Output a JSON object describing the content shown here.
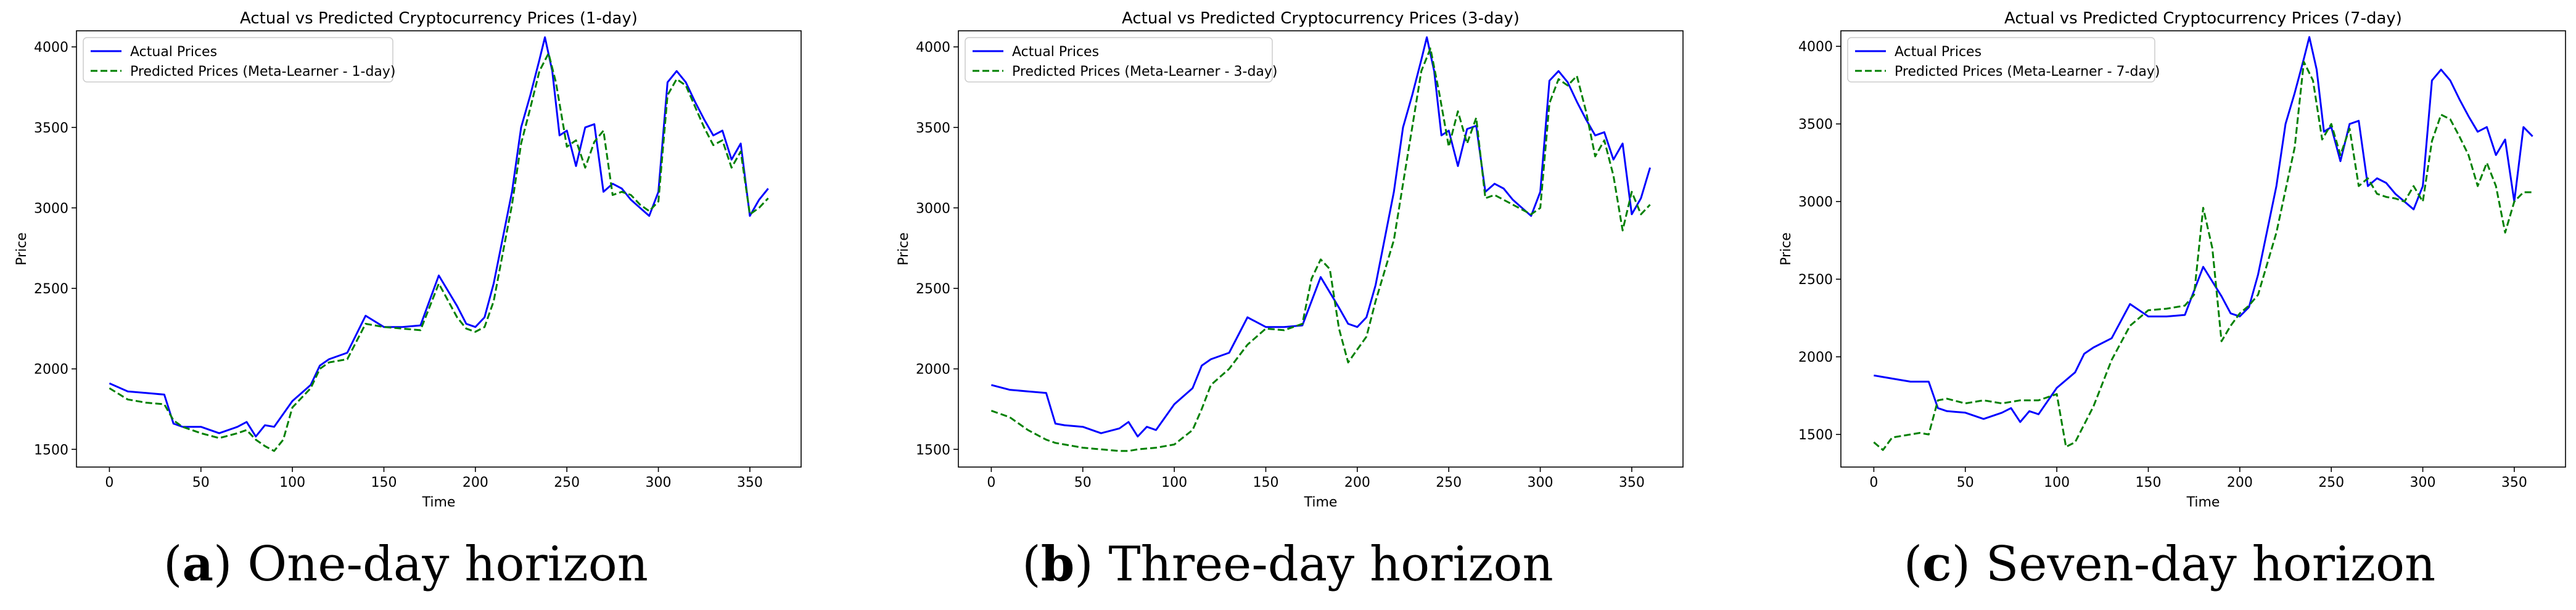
{
  "colors": {
    "actual": "#0000ff",
    "predicted": "#008000",
    "axis": "#000000",
    "legend_border": "#cccccc"
  },
  "chart_data": [
    {
      "type": "line",
      "title": "Actual vs Predicted Cryptocurrency Prices (1-day)",
      "xlabel": "Time",
      "ylabel": "Price",
      "xlim": [
        -18,
        378
      ],
      "ylim": [
        1390,
        4100
      ],
      "xticks": [
        0,
        50,
        100,
        150,
        200,
        250,
        300,
        350
      ],
      "yticks": [
        1500,
        2000,
        2500,
        3000,
        3500,
        4000
      ],
      "legend_position": "upper-left",
      "caption": {
        "letter": "a",
        "text": ") One-day horizon"
      },
      "series": [
        {
          "name": "Actual Prices",
          "style": "solid",
          "x": [
            0,
            10,
            20,
            30,
            35,
            40,
            50,
            60,
            70,
            75,
            80,
            85,
            90,
            100,
            110,
            115,
            120,
            130,
            140,
            150,
            160,
            170,
            180,
            190,
            195,
            200,
            205,
            210,
            220,
            225,
            230,
            235,
            238,
            242,
            246,
            250,
            255,
            260,
            265,
            270,
            275,
            280,
            285,
            290,
            295,
            300,
            305,
            310,
            315,
            320,
            325,
            330,
            335,
            340,
            345,
            350,
            355,
            360
          ],
          "values": [
            1910,
            1860,
            1850,
            1840,
            1660,
            1640,
            1640,
            1600,
            1640,
            1670,
            1580,
            1650,
            1640,
            1800,
            1900,
            2020,
            2060,
            2100,
            2330,
            2260,
            2260,
            2270,
            2580,
            2390,
            2280,
            2260,
            2320,
            2530,
            3100,
            3500,
            3700,
            3920,
            4060,
            3850,
            3450,
            3480,
            3260,
            3500,
            3520,
            3100,
            3150,
            3120,
            3050,
            3000,
            2950,
            3100,
            3780,
            3850,
            3780,
            3660,
            3550,
            3450,
            3480,
            3300,
            3400,
            2950,
            3050,
            3120
          ]
        },
        {
          "name": "Predicted Prices (Meta-Learner - 1-day)",
          "style": "dashed",
          "x": [
            0,
            10,
            20,
            30,
            35,
            40,
            50,
            60,
            70,
            75,
            80,
            85,
            90,
            95,
            100,
            110,
            115,
            120,
            130,
            140,
            150,
            160,
            170,
            180,
            190,
            195,
            200,
            205,
            210,
            220,
            225,
            230,
            235,
            240,
            244,
            250,
            255,
            260,
            265,
            270,
            275,
            280,
            285,
            290,
            295,
            300,
            305,
            310,
            315,
            320,
            325,
            330,
            335,
            340,
            345,
            350,
            355,
            360
          ],
          "values": [
            1880,
            1810,
            1790,
            1780,
            1680,
            1640,
            1600,
            1570,
            1600,
            1620,
            1560,
            1520,
            1490,
            1560,
            1760,
            1880,
            2000,
            2040,
            2060,
            2280,
            2260,
            2250,
            2240,
            2530,
            2320,
            2250,
            2230,
            2260,
            2420,
            3020,
            3400,
            3620,
            3850,
            3960,
            3780,
            3380,
            3420,
            3250,
            3410,
            3480,
            3080,
            3100,
            3080,
            3020,
            2980,
            3040,
            3700,
            3800,
            3760,
            3630,
            3500,
            3390,
            3420,
            3250,
            3350,
            2960,
            3000,
            3060
          ]
        }
      ]
    },
    {
      "type": "line",
      "title": "Actual vs Predicted Cryptocurrency Prices (3-day)",
      "xlabel": "Time",
      "ylabel": "Price",
      "xlim": [
        -18,
        378
      ],
      "ylim": [
        1390,
        4100
      ],
      "xticks": [
        0,
        50,
        100,
        150,
        200,
        250,
        300,
        350
      ],
      "yticks": [
        1500,
        2000,
        2500,
        3000,
        3500,
        4000
      ],
      "legend_position": "upper-left",
      "caption": {
        "letter": "b",
        "text": ") Three-day horizon"
      },
      "series": [
        {
          "name": "Actual Prices",
          "style": "solid",
          "x": [
            0,
            10,
            20,
            30,
            35,
            40,
            50,
            60,
            70,
            75,
            80,
            85,
            90,
            100,
            110,
            115,
            120,
            130,
            140,
            150,
            160,
            170,
            180,
            190,
            195,
            200,
            205,
            210,
            220,
            225,
            230,
            235,
            238,
            242,
            246,
            250,
            255,
            260,
            265,
            270,
            275,
            280,
            285,
            290,
            295,
            300,
            305,
            310,
            315,
            320,
            325,
            330,
            335,
            340,
            345,
            350,
            355,
            360
          ],
          "values": [
            1900,
            1870,
            1860,
            1850,
            1660,
            1650,
            1640,
            1600,
            1630,
            1670,
            1580,
            1640,
            1620,
            1780,
            1880,
            2020,
            2060,
            2100,
            2320,
            2260,
            2260,
            2270,
            2570,
            2380,
            2280,
            2260,
            2320,
            2520,
            3100,
            3500,
            3700,
            3920,
            4060,
            3850,
            3450,
            3480,
            3260,
            3490,
            3510,
            3100,
            3150,
            3120,
            3050,
            3000,
            2950,
            3100,
            3790,
            3850,
            3780,
            3660,
            3550,
            3450,
            3470,
            3300,
            3400,
            2960,
            3060,
            3250
          ]
        },
        {
          "name": "Predicted Prices (Meta-Learner - 3-day)",
          "style": "dashed",
          "x": [
            0,
            10,
            20,
            30,
            35,
            40,
            50,
            60,
            70,
            75,
            80,
            90,
            100,
            110,
            115,
            120,
            130,
            140,
            150,
            160,
            170,
            175,
            180,
            185,
            190,
            195,
            200,
            205,
            210,
            220,
            225,
            230,
            235,
            240,
            245,
            250,
            255,
            260,
            265,
            270,
            275,
            280,
            285,
            290,
            295,
            300,
            305,
            310,
            315,
            320,
            325,
            330,
            335,
            340,
            345,
            350,
            355,
            360
          ],
          "values": [
            1740,
            1700,
            1620,
            1560,
            1540,
            1530,
            1510,
            1500,
            1490,
            1490,
            1500,
            1510,
            1530,
            1620,
            1750,
            1900,
            2000,
            2150,
            2250,
            2240,
            2280,
            2560,
            2680,
            2620,
            2250,
            2040,
            2120,
            2200,
            2420,
            2800,
            3150,
            3500,
            3850,
            3990,
            3700,
            3380,
            3600,
            3400,
            3560,
            3060,
            3080,
            3050,
            3020,
            2990,
            2960,
            3000,
            3650,
            3800,
            3760,
            3820,
            3600,
            3320,
            3420,
            3200,
            2860,
            3100,
            2960,
            3020
          ]
        }
      ]
    },
    {
      "type": "line",
      "title": "Actual vs Predicted Cryptocurrency Prices (7-day)",
      "xlabel": "Time",
      "ylabel": "Price",
      "xlim": [
        -18,
        378
      ],
      "ylim": [
        1290,
        4100
      ],
      "xticks": [
        0,
        50,
        100,
        150,
        200,
        250,
        300,
        350
      ],
      "yticks": [
        1500,
        2000,
        2500,
        3000,
        3500,
        4000
      ],
      "legend_position": "upper-left",
      "caption": {
        "letter": "c",
        "text": ") Seven-day horizon"
      },
      "series": [
        {
          "name": "Actual Prices",
          "style": "solid",
          "x": [
            0,
            10,
            20,
            30,
            35,
            40,
            50,
            60,
            70,
            75,
            80,
            85,
            90,
            100,
            110,
            115,
            120,
            130,
            140,
            150,
            160,
            170,
            180,
            190,
            195,
            200,
            205,
            210,
            220,
            225,
            230,
            235,
            238,
            242,
            246,
            250,
            255,
            260,
            265,
            270,
            275,
            280,
            285,
            290,
            295,
            300,
            305,
            310,
            315,
            320,
            325,
            330,
            335,
            340,
            345,
            350,
            355,
            360
          ],
          "values": [
            1880,
            1860,
            1840,
            1840,
            1670,
            1650,
            1640,
            1600,
            1640,
            1670,
            1580,
            1650,
            1630,
            1800,
            1900,
            2020,
            2060,
            2120,
            2340,
            2260,
            2260,
            2270,
            2580,
            2390,
            2280,
            2260,
            2320,
            2530,
            3100,
            3500,
            3700,
            3920,
            4060,
            3850,
            3450,
            3480,
            3260,
            3500,
            3520,
            3100,
            3150,
            3120,
            3050,
            3000,
            2950,
            3100,
            3780,
            3850,
            3780,
            3660,
            3550,
            3450,
            3480,
            3300,
            3400,
            3000,
            3480,
            3420
          ]
        },
        {
          "name": "Predicted Prices (Meta-Learner - 7-day)",
          "style": "dashed",
          "x": [
            0,
            5,
            10,
            20,
            25,
            30,
            35,
            40,
            50,
            60,
            70,
            80,
            90,
            100,
            105,
            110,
            120,
            130,
            140,
            150,
            160,
            170,
            175,
            180,
            185,
            190,
            195,
            200,
            205,
            210,
            220,
            230,
            235,
            240,
            245,
            250,
            255,
            260,
            265,
            270,
            275,
            280,
            285,
            290,
            295,
            300,
            305,
            310,
            315,
            320,
            325,
            330,
            335,
            340,
            345,
            350,
            355,
            360
          ],
          "values": [
            1450,
            1400,
            1480,
            1500,
            1510,
            1500,
            1720,
            1730,
            1700,
            1720,
            1700,
            1720,
            1720,
            1760,
            1420,
            1450,
            1680,
            1980,
            2200,
            2300,
            2310,
            2330,
            2400,
            2960,
            2700,
            2100,
            2200,
            2280,
            2330,
            2400,
            2800,
            3350,
            3900,
            3780,
            3400,
            3500,
            3300,
            3470,
            3100,
            3150,
            3050,
            3030,
            3020,
            3000,
            3100,
            3000,
            3390,
            3560,
            3530,
            3420,
            3300,
            3100,
            3250,
            3100,
            2800,
            3000,
            3060,
            3060
          ]
        }
      ]
    }
  ]
}
